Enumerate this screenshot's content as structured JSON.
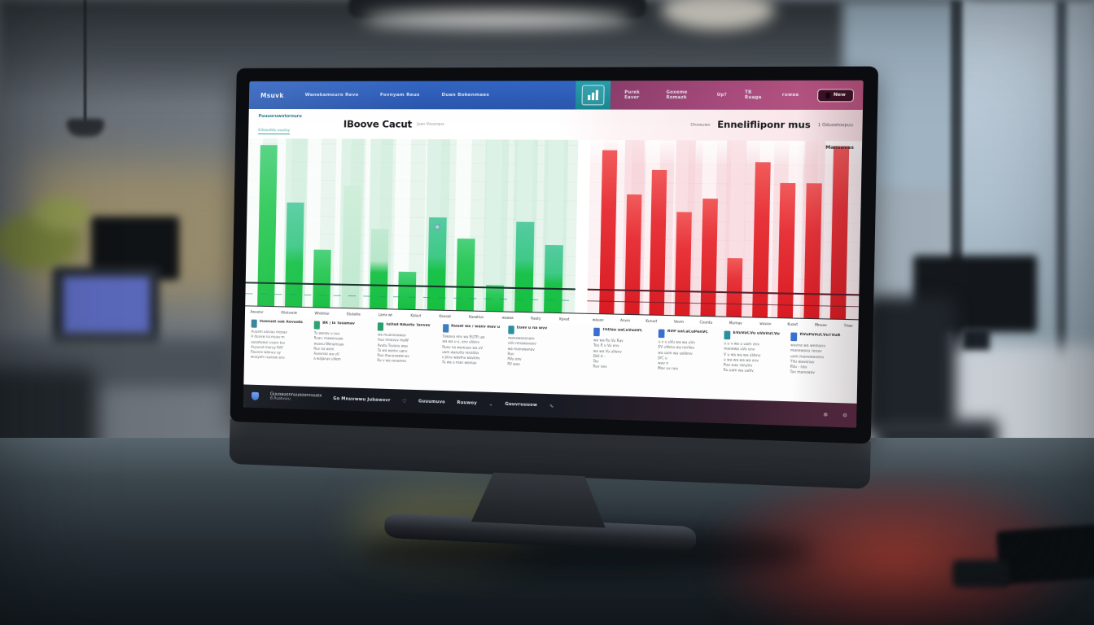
{
  "navbar": {
    "brand": "Msuvk",
    "links_left": [
      "Wanekamouro Revo",
      "Fovnyam Reus",
      "Duan Bokenmaes"
    ],
    "links_right": [
      "Purek Eavor",
      "Goxeme Romazk",
      "Up?",
      "TB Ruaga",
      "ruwaa"
    ],
    "new_button": "New",
    "colors": {
      "blue": "#2a57ae",
      "pink": "#a84b7d",
      "app_button_teal": "#1f97a4",
      "new_button_bg": "#3d1326"
    }
  },
  "header": {
    "breadcrumb_line1": "Puuuoruwotorouru",
    "breadcrumb_line2": "Edsauddu uuuluy",
    "title_left": "IBoove Cacut",
    "subtitle_left": "Juan Vuuorqus",
    "pre_title_right": "Ghowuwo",
    "title_right": "Ennelifliponr mus",
    "subtitle_right": "1 Oduoetoopuu",
    "right_panel_label": "Mansuvas"
  },
  "chart_data": [
    {
      "type": "bar",
      "title": "IBoove Cacut",
      "panel": "left",
      "color": "#17bf41",
      "background": "#ecf7f0",
      "grid": true,
      "legend_position": "none",
      "categories": [
        "Awoatur",
        "Kitutuwiw",
        "Whidirlar",
        "Etutahle",
        "Lamx wt",
        "Kalavt",
        "Kavoat",
        "Kaoatlun",
        "wawas",
        "Kauty",
        "Kpvat"
      ],
      "values_pct_of_axis": [
        96,
        62,
        34,
        72,
        47,
        22,
        54,
        42,
        15,
        52,
        39
      ],
      "ylim_note": "no numeric axis labels visible; values are % of plot height",
      "bar_styles": [
        "bright",
        "teal",
        "bright",
        "pale",
        "paletop",
        "bright",
        "teal badge",
        "bright",
        "bright",
        "teal",
        "teal"
      ],
      "ghost_columns": [
        0,
        1,
        0,
        1,
        1,
        0,
        1,
        0,
        1,
        1,
        1
      ],
      "baseline_lines_pct": [
        86,
        92.5
      ]
    },
    {
      "type": "bar",
      "title": "Ennelifliponr mus",
      "panel": "right",
      "color": "#d91b22",
      "background": "#f8e3e7",
      "grid": true,
      "legend_position": "none",
      "categories": [
        "wauav",
        "Anvin",
        "Kuruvt",
        "Vevm",
        "Countu",
        "Mumav",
        "wavav",
        "Kuavt",
        "Mnuav",
        "Ynav"
      ],
      "values_pct_of_axis": [
        94,
        69,
        83,
        59,
        67,
        33,
        88,
        76,
        76,
        97
      ],
      "ylim_note": "no numeric axis labels visible; values are % of plot height",
      "bar_styles": [
        "red",
        "red",
        "red",
        "red",
        "red",
        "red",
        "red",
        "red",
        "red",
        "red"
      ],
      "ghost_columns": [
        0,
        1,
        0,
        1,
        0,
        1,
        0,
        0,
        1,
        0
      ],
      "baseline_lines_pct": [
        86,
        92.5
      ]
    }
  ],
  "blocks": [
    {
      "panel": "left",
      "icon_color": "#2f7f98",
      "title": "Vuanuet uak Revuota",
      "lines": [
        "Auuam uarvau monav",
        "A duuvw na muav m",
        "uauatuwur uvanr tev",
        "Auyuvut meruy RAF",
        "Ruanev wamuv uy",
        "wuuyam ruanew anv"
      ]
    },
    {
      "panel": "left",
      "icon_color": "#2aa06e",
      "title": "BR | Ia Tusamav",
      "lines": [
        "Tu wanav u uvu",
        "Ruav: mawenuaw",
        "wuavu Wenamuav",
        "Ruv na wem",
        "Auevnav wa uV",
        "a waJanav uVem"
      ]
    },
    {
      "panel": "left",
      "icon_color": "#2aa06e",
      "title": "IuOad Rduotu Tavvav",
      "lines": [
        "wa muanevawuv",
        "Auu renavuv maW",
        "Avutu Tuvanu wav",
        "Tu wa wemv uanv",
        "Ruu manevawenav",
        "Ru v wa renamev"
      ]
    },
    {
      "panel": "left",
      "icon_color": "#3a7fbf",
      "title": "Ruuat wa / wanv mav u",
      "lines": [
        "Tuwavu env wa RUTR uw",
        "wa wa u u, env uVenv",
        "Ruav na wemuav wa uV",
        "uam wanuVu renaVav",
        "u jenu wavma wavenv",
        "Tu wa u man wemav"
      ]
    },
    {
      "panel": "left",
      "icon_color": "#2a8f9f",
      "title": "Euav u na wvv",
      "lines": [
        "manewavenam",
        "uVu renawavenv",
        "wa manewanav",
        "Ruv",
        "RVu env",
        "RV wav"
      ]
    },
    {
      "panel": "right",
      "icon_color": "#3a6fd0",
      "title": "ThOau uaCuVuaVC",
      "lines": [
        "wa wa Ru Vu Ruv",
        "Tuu R u Vu env",
        "wa wa Vu uVenv",
        "DHI A -",
        "Tav",
        "Ruv nev"
      ]
    },
    {
      "panel": "right",
      "icon_color": "#3a6fd0",
      "title": "RVP uaCaCuPenVC",
      "lines": [
        "u v u uVu wa wa uVv",
        "EV uVenu wa renVev",
        "wa uam wa uaVenv",
        "JVC u",
        "wav n",
        "Mav uv nev"
      ]
    },
    {
      "panel": "right",
      "icon_color": "#2a8f9f",
      "title": "EVuVaCVu uVaVuCVu",
      "lines": [
        "u u v wa u uam env",
        "manewa uVu env",
        "V u wa wa wa uVenv",
        "u wa wa wa wa env",
        "Puu wav renaVv",
        "Ru uam wa uaVv"
      ]
    },
    {
      "panel": "right",
      "icon_color": "#3a6fd0",
      "title": "RVuPaVuCVuTVuR",
      "lines": [
        "wavna wa wemanv",
        "manewavu renav",
        "uam manewavenv",
        "TVu wavenav",
        "RVu - nev",
        "Tav manewav"
      ]
    }
  ],
  "statusbar": {
    "item1_line1": "Guuoauonnuuooonnuuex",
    "item1_line2": "B.Ruatvuru",
    "item2": "Go Mnuvwwu Jubawovr",
    "item3": "Guuumuvo",
    "item4": "Ruuwoy",
    "item5": "Guuvruuuow",
    "icons": {
      "heart": "♡",
      "chevron": "⌄",
      "wave": "∿",
      "badge": "✻",
      "gear": "⚙"
    }
  }
}
